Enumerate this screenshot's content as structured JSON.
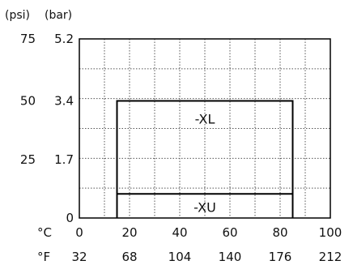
{
  "chart_data": {
    "type": "line",
    "title": "",
    "grid": true,
    "y_units": [
      "(psi)",
      "(bar)"
    ],
    "y_ticks_psi": [
      "75",
      "50",
      "25",
      ""
    ],
    "y_ticks_bar": [
      "5.2",
      "3.4",
      "1.7",
      "0"
    ],
    "y_tick_values_bar": [
      5.2,
      3.4,
      1.7,
      0
    ],
    "ylim_bar": [
      0,
      5.2
    ],
    "x_axis_labels": {
      "celsius": "°C",
      "fahrenheit": "°F"
    },
    "x_ticks_c": [
      "0",
      "20",
      "40",
      "60",
      "80",
      "100"
    ],
    "x_tick_values_c": [
      0,
      20,
      40,
      60,
      80,
      100
    ],
    "x_ticks_f": [
      "32",
      "68",
      "104",
      "140",
      "176",
      "212"
    ],
    "xlim_c": [
      0,
      100
    ],
    "series": [
      {
        "name": "-XL",
        "x_c": [
          15,
          15,
          85,
          85
        ],
        "y_bar": [
          0,
          3.4,
          3.4,
          0
        ],
        "color": "#000000"
      },
      {
        "name": "-XU",
        "x_c": [
          15,
          15,
          85,
          85
        ],
        "y_bar": [
          0,
          0.7,
          0.7,
          0
        ],
        "color": "#000000"
      }
    ],
    "grid_color": "#555555"
  }
}
